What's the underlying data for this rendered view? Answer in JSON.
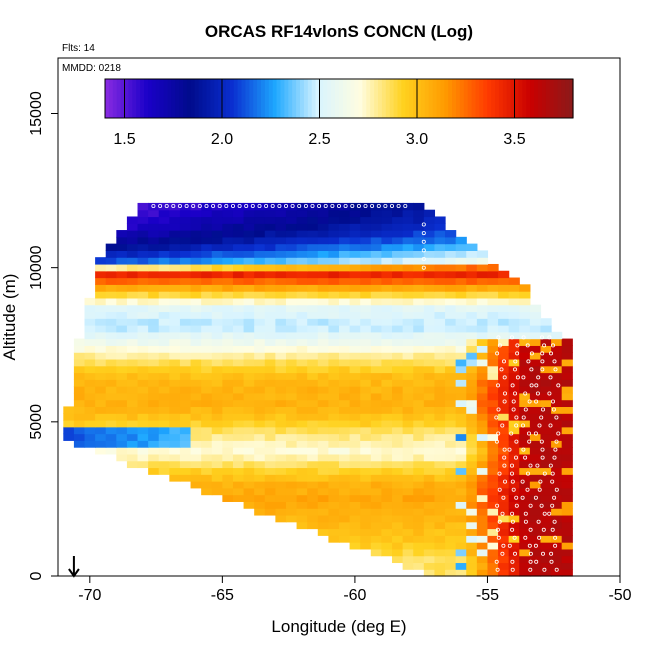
{
  "chart_data": {
    "type": "heatmap",
    "title": "ORCAS RF14vlonS CONCN (Log)",
    "annotations": {
      "flights": "Flts: 14",
      "date": "MMDD: 0218"
    },
    "xlabel": "Longitude (deg E)",
    "ylabel": "Altitude (m)",
    "xlim": [
      -71.2,
      -50
    ],
    "ylim": [
      0,
      16800
    ],
    "x_ticks": [
      -70,
      -65,
      -60,
      -55,
      -50
    ],
    "x_tick_labels": [
      "-70",
      "-65",
      "-60",
      "-55",
      "-50"
    ],
    "y_ticks": [
      0,
      5000,
      10000,
      15000
    ],
    "y_tick_labels": [
      "0",
      "5000",
      "10000",
      "15000"
    ],
    "colorbar": {
      "range": [
        1.4,
        3.8
      ],
      "ticks": [
        1.5,
        2.0,
        2.5,
        3.0,
        3.5
      ],
      "tick_labels": [
        "1.5",
        "2.0",
        "2.5",
        "3.0",
        "3.5"
      ],
      "colors": [
        "#8a2be2",
        "#1a00c8",
        "#000b8c",
        "#0a2fd0",
        "#1ea8ff",
        "#d8f4ff",
        "#fffde0",
        "#ffd21f",
        "#ff9a00",
        "#ff3a00",
        "#c90000",
        "#8b1a1a"
      ]
    },
    "altitude_bands": [
      {
        "alt": 12000,
        "value": 1.45
      },
      {
        "alt": 11400,
        "value": 1.55
      },
      {
        "alt": 10800,
        "value": 1.75
      },
      {
        "alt": 10200,
        "value": 2.1
      },
      {
        "alt": 9800,
        "value": 3.45
      },
      {
        "alt": 9300,
        "value": 3.05
      },
      {
        "alt": 8700,
        "value": 2.55
      },
      {
        "alt": 8100,
        "value": 2.45
      },
      {
        "alt": 7500,
        "value": 2.65
      },
      {
        "alt": 7000,
        "value": 2.85
      },
      {
        "alt": 6500,
        "value": 3.0
      },
      {
        "alt": 6000,
        "value": 3.05
      },
      {
        "alt": 5500,
        "value": 3.05
      },
      {
        "alt": 5000,
        "value": 2.95
      },
      {
        "alt": 4500,
        "value": 2.8
      },
      {
        "alt": 4000,
        "value": 2.7
      },
      {
        "alt": 3500,
        "value": 2.9
      },
      {
        "alt": 3000,
        "value": 3.05
      },
      {
        "alt": 2500,
        "value": 3.1
      },
      {
        "alt": 2000,
        "value": 3.05
      },
      {
        "alt": 1500,
        "value": 3.0
      },
      {
        "alt": 1000,
        "value": 2.95
      },
      {
        "alt": 500,
        "value": 2.85
      }
    ],
    "east_max_value": 3.65,
    "flight_track_longitudes": [
      -54.5,
      -54.0,
      -53.5,
      -53.0,
      -52.5
    ],
    "aircraft_position": {
      "lon": -70.6,
      "alt": 0
    }
  }
}
